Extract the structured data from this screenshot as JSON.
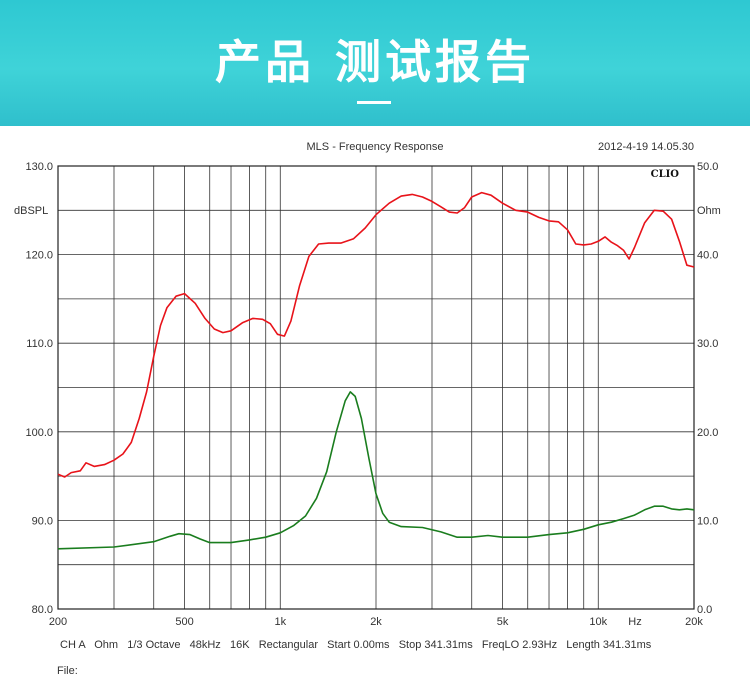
{
  "banner": {
    "title": "产品 测试报告"
  },
  "chart_data": {
    "type": "line",
    "title": "MLS - Frequency Response",
    "timestamp": "2012-4-19 14.05.30",
    "brand": "CLIO",
    "x_scale": "log",
    "xlim": [
      200,
      20000
    ],
    "x_ticks": [
      {
        "value": 200,
        "label": "200"
      },
      {
        "value": 500,
        "label": "500"
      },
      {
        "value": 1000,
        "label": "1k"
      },
      {
        "value": 2000,
        "label": "2k"
      },
      {
        "value": 5000,
        "label": "5k"
      },
      {
        "value": 10000,
        "label": "10k"
      },
      {
        "value": 20000,
        "label": "20k"
      }
    ],
    "x_unit": "Hz",
    "ylim": [
      80,
      130
    ],
    "ylabel": "dBSPL",
    "y_ticks": [
      "80.0",
      "90.0",
      "100.0",
      "110.0",
      "120.0",
      "130.0"
    ],
    "y2lim": [
      0,
      50
    ],
    "y2label": "Ohm",
    "y2_ticks": [
      "0.0",
      "10.0",
      "20.0",
      "30.0",
      "40.0",
      "50.0"
    ],
    "grid": true,
    "settings_line": "CH A   Ohm   1/3 Octave   48kHz   16K   Rectangular   Start 0.00ms   Stop 341.31ms   FreqLO 2.93Hz   Length 341.31ms",
    "file_label": "File:",
    "series": [
      {
        "axis": "left",
        "color": "#e8131a",
        "points": [
          [
            200,
            95.2
          ],
          [
            210,
            94.9
          ],
          [
            220,
            95.4
          ],
          [
            235,
            95.6
          ],
          [
            245,
            96.5
          ],
          [
            260,
            96.1
          ],
          [
            280,
            96.3
          ],
          [
            300,
            96.8
          ],
          [
            320,
            97.5
          ],
          [
            340,
            98.8
          ],
          [
            360,
            101.5
          ],
          [
            380,
            104.5
          ],
          [
            400,
            108.5
          ],
          [
            420,
            112.0
          ],
          [
            440,
            114.0
          ],
          [
            470,
            115.3
          ],
          [
            500,
            115.6
          ],
          [
            540,
            114.5
          ],
          [
            580,
            112.8
          ],
          [
            620,
            111.6
          ],
          [
            660,
            111.2
          ],
          [
            700,
            111.4
          ],
          [
            760,
            112.3
          ],
          [
            820,
            112.8
          ],
          [
            880,
            112.7
          ],
          [
            930,
            112.2
          ],
          [
            980,
            111.0
          ],
          [
            1030,
            110.8
          ],
          [
            1080,
            112.5
          ],
          [
            1150,
            116.5
          ],
          [
            1230,
            119.8
          ],
          [
            1320,
            121.2
          ],
          [
            1420,
            121.3
          ],
          [
            1550,
            121.3
          ],
          [
            1700,
            121.8
          ],
          [
            1850,
            123.0
          ],
          [
            2000,
            124.5
          ],
          [
            2200,
            125.8
          ],
          [
            2400,
            126.6
          ],
          [
            2600,
            126.8
          ],
          [
            2800,
            126.5
          ],
          [
            3000,
            126.0
          ],
          [
            3200,
            125.4
          ],
          [
            3400,
            124.8
          ],
          [
            3600,
            124.7
          ],
          [
            3800,
            125.3
          ],
          [
            4000,
            126.5
          ],
          [
            4300,
            127.0
          ],
          [
            4600,
            126.7
          ],
          [
            5000,
            125.8
          ],
          [
            5500,
            125.0
          ],
          [
            6000,
            124.8
          ],
          [
            6500,
            124.2
          ],
          [
            7000,
            123.8
          ],
          [
            7500,
            123.7
          ],
          [
            8000,
            122.8
          ],
          [
            8500,
            121.2
          ],
          [
            9000,
            121.1
          ],
          [
            9500,
            121.2
          ],
          [
            10000,
            121.5
          ],
          [
            10500,
            122.0
          ],
          [
            11000,
            121.4
          ],
          [
            11500,
            121.0
          ],
          [
            12000,
            120.5
          ],
          [
            12500,
            119.5
          ],
          [
            13000,
            120.8
          ],
          [
            14000,
            123.6
          ],
          [
            15000,
            125.0
          ],
          [
            16000,
            124.9
          ],
          [
            17000,
            124.0
          ],
          [
            18000,
            121.5
          ],
          [
            19000,
            118.8
          ],
          [
            20000,
            118.6
          ]
        ]
      },
      {
        "axis": "right",
        "color": "#1a7d1e",
        "points": [
          [
            200,
            6.8
          ],
          [
            300,
            7.0
          ],
          [
            400,
            7.6
          ],
          [
            450,
            8.2
          ],
          [
            480,
            8.5
          ],
          [
            520,
            8.4
          ],
          [
            560,
            7.9
          ],
          [
            600,
            7.5
          ],
          [
            700,
            7.5
          ],
          [
            800,
            7.8
          ],
          [
            900,
            8.1
          ],
          [
            1000,
            8.6
          ],
          [
            1100,
            9.4
          ],
          [
            1200,
            10.5
          ],
          [
            1300,
            12.5
          ],
          [
            1400,
            15.5
          ],
          [
            1500,
            20.0
          ],
          [
            1600,
            23.5
          ],
          [
            1660,
            24.5
          ],
          [
            1720,
            24.0
          ],
          [
            1800,
            21.5
          ],
          [
            1900,
            17.0
          ],
          [
            2000,
            13.0
          ],
          [
            2100,
            10.8
          ],
          [
            2200,
            9.8
          ],
          [
            2400,
            9.3
          ],
          [
            2800,
            9.2
          ],
          [
            3200,
            8.7
          ],
          [
            3600,
            8.1
          ],
          [
            4000,
            8.1
          ],
          [
            4500,
            8.3
          ],
          [
            5000,
            8.1
          ],
          [
            6000,
            8.1
          ],
          [
            7000,
            8.4
          ],
          [
            8000,
            8.6
          ],
          [
            9000,
            9.0
          ],
          [
            10000,
            9.5
          ],
          [
            11000,
            9.8
          ],
          [
            12000,
            10.2
          ],
          [
            13000,
            10.6
          ],
          [
            14000,
            11.2
          ],
          [
            15000,
            11.6
          ],
          [
            16000,
            11.6
          ],
          [
            17000,
            11.3
          ],
          [
            18000,
            11.2
          ],
          [
            19000,
            11.3
          ],
          [
            20000,
            11.2
          ]
        ]
      }
    ]
  }
}
